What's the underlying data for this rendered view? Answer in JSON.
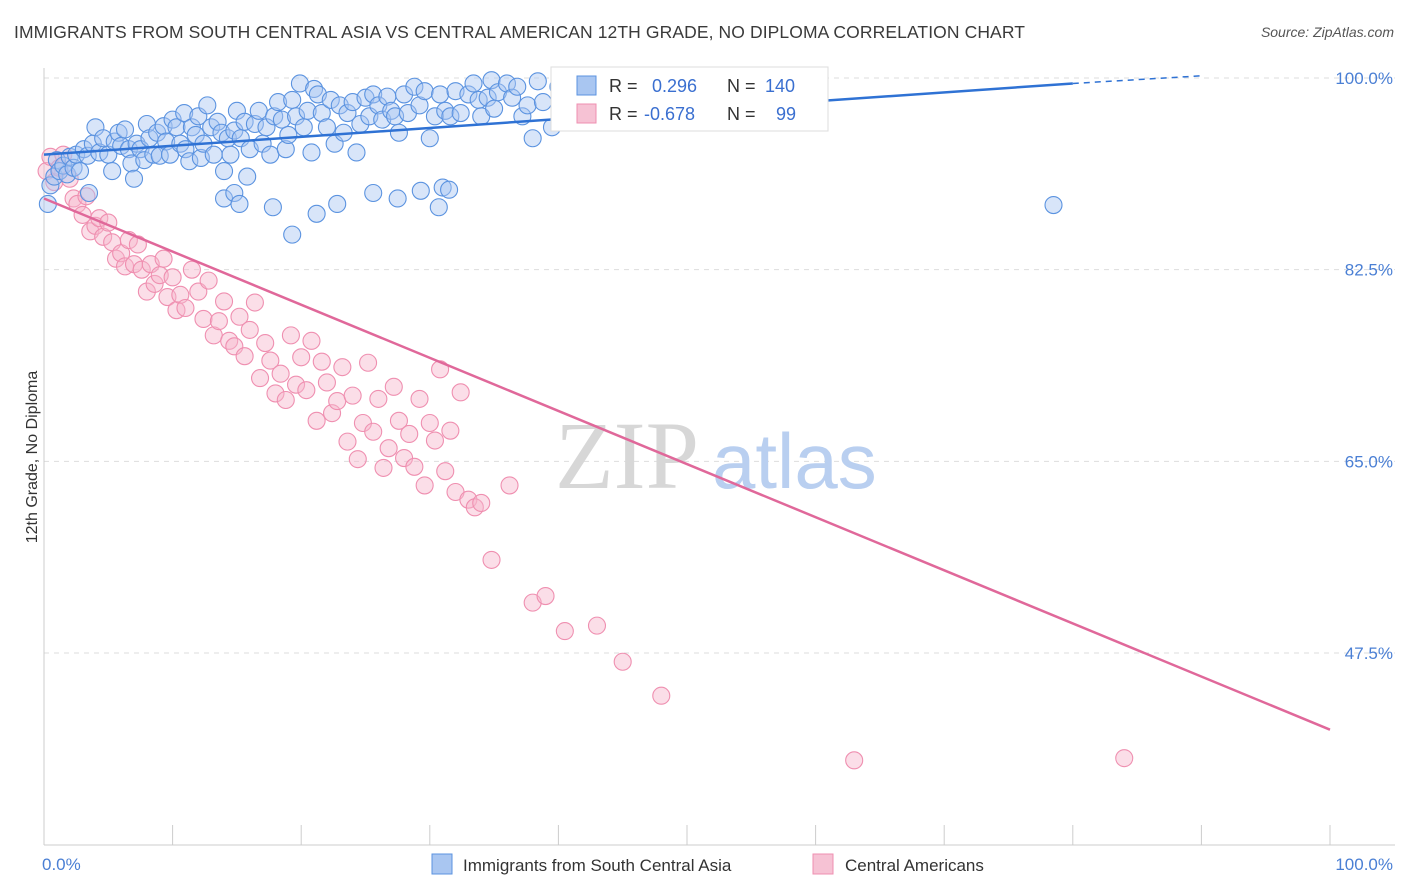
{
  "title": "IMMIGRANTS FROM SOUTH CENTRAL ASIA VS CENTRAL AMERICAN 12TH GRADE, NO DIPLOMA CORRELATION CHART",
  "source": "Source: ZipAtlas.com",
  "colors": {
    "blue": "#5b93e0",
    "blue_line": "#2f72d4",
    "pink": "#ef8fb0",
    "pink_line": "#e0689a",
    "axis_text": "#4a7fd4",
    "grid": "#dddddd"
  },
  "chart_data": {
    "type": "scatter",
    "title": "IMMIGRANTS FROM SOUTH CENTRAL ASIA VS CENTRAL AMERICAN 12TH GRADE, NO DIPLOMA CORRELATION CHART",
    "xlabel": "",
    "ylabel": "12th Grade, No Diploma",
    "xlim": [
      0,
      100
    ],
    "ylim": [
      29,
      100.5
    ],
    "x_tick_labels": [
      "0.0%",
      "100.0%"
    ],
    "y_ticks": [
      47.5,
      65.0,
      82.5,
      100.0
    ],
    "y_tick_labels": [
      "47.5%",
      "65.0%",
      "82.5%",
      "100.0%"
    ],
    "watermark": {
      "zip": "ZIP",
      "atlas": "atlas"
    },
    "stats": {
      "r_label": "R =",
      "n_label": "N =",
      "blue": {
        "r": "0.296",
        "n": "140"
      },
      "pink": {
        "r": "-0.678",
        "n": "99"
      }
    },
    "series": [
      {
        "name": "Immigrants from South Central Asia",
        "color": "#5b93e0",
        "trend": {
          "x": [
            0,
            80
          ],
          "y": [
            93.0,
            99.5
          ],
          "dashed_to": [
            90,
            100.2
          ]
        },
        "points": [
          [
            0.3,
            88.5
          ],
          [
            0.5,
            90.2
          ],
          [
            0.8,
            91
          ],
          [
            1,
            92.5
          ],
          [
            1.2,
            91.5
          ],
          [
            1.5,
            92
          ],
          [
            1.8,
            91.2
          ],
          [
            2,
            92.8
          ],
          [
            2.3,
            91.8
          ],
          [
            2.5,
            93
          ],
          [
            2.8,
            91.5
          ],
          [
            3.1,
            93.5
          ],
          [
            3.4,
            92.9
          ],
          [
            3.5,
            89.5
          ],
          [
            3.8,
            94
          ],
          [
            4,
            95.5
          ],
          [
            4.3,
            93.2
          ],
          [
            4.6,
            94.5
          ],
          [
            5,
            93
          ],
          [
            5.3,
            91.5
          ],
          [
            5.5,
            94.2
          ],
          [
            5.8,
            95
          ],
          [
            6,
            93.8
          ],
          [
            6.3,
            95.3
          ],
          [
            6.6,
            93.5
          ],
          [
            6.8,
            92.2
          ],
          [
            7,
            90.8
          ],
          [
            7.2,
            94
          ],
          [
            7.5,
            93.5
          ],
          [
            7.8,
            92.5
          ],
          [
            8,
            95.8
          ],
          [
            8.2,
            94.5
          ],
          [
            8.5,
            93
          ],
          [
            8.8,
            95
          ],
          [
            9,
            92.9
          ],
          [
            9.3,
            95.6
          ],
          [
            9.5,
            94.2
          ],
          [
            9.8,
            93
          ],
          [
            10,
            96.2
          ],
          [
            10.3,
            95.5
          ],
          [
            10.6,
            94
          ],
          [
            10.9,
            96.8
          ],
          [
            11,
            93.5
          ],
          [
            11.3,
            92.4
          ],
          [
            11.5,
            95.5
          ],
          [
            11.8,
            94.8
          ],
          [
            12,
            96.5
          ],
          [
            12.2,
            92.7
          ],
          [
            12.4,
            94
          ],
          [
            12.7,
            97.5
          ],
          [
            13,
            95.5
          ],
          [
            13.2,
            93
          ],
          [
            13.5,
            96
          ],
          [
            13.8,
            95
          ],
          [
            14,
            91.5
          ],
          [
            14.3,
            94.5
          ],
          [
            14.5,
            93
          ],
          [
            14.8,
            95.2
          ],
          [
            15,
            97
          ],
          [
            15.3,
            94.5
          ],
          [
            15.6,
            96
          ],
          [
            15.8,
            91
          ],
          [
            16,
            93.5
          ],
          [
            16.4,
            95.8
          ],
          [
            16.7,
            97
          ],
          [
            17,
            94
          ],
          [
            17.3,
            95.5
          ],
          [
            17.6,
            93
          ],
          [
            17.9,
            96.5
          ],
          [
            18.2,
            97.8
          ],
          [
            18.5,
            96.2
          ],
          [
            18.8,
            93.5
          ],
          [
            19,
            94.8
          ],
          [
            19.3,
            98
          ],
          [
            19.6,
            96.5
          ],
          [
            19.9,
            99.5
          ],
          [
            20.2,
            95.5
          ],
          [
            20.5,
            97
          ],
          [
            20.8,
            93.2
          ],
          [
            21,
            99
          ],
          [
            21.3,
            98.5
          ],
          [
            21.6,
            96.8
          ],
          [
            22,
            95.5
          ],
          [
            22.3,
            98
          ],
          [
            22.6,
            94
          ],
          [
            23,
            97.5
          ],
          [
            23.3,
            95
          ],
          [
            23.6,
            96.8
          ],
          [
            24,
            97.8
          ],
          [
            24.3,
            93.2
          ],
          [
            24.6,
            95.8
          ],
          [
            25,
            98.2
          ],
          [
            25.3,
            96.5
          ],
          [
            25.6,
            98.5
          ],
          [
            26,
            97.5
          ],
          [
            26.3,
            96.2
          ],
          [
            26.7,
            98.3
          ],
          [
            27,
            97
          ],
          [
            27.3,
            96.5
          ],
          [
            27.6,
            95
          ],
          [
            28,
            98.5
          ],
          [
            28.3,
            96.8
          ],
          [
            28.8,
            99.2
          ],
          [
            29.2,
            97.5
          ],
          [
            29.6,
            98.8
          ],
          [
            30,
            94.5
          ],
          [
            30.4,
            96.5
          ],
          [
            30.8,
            98.5
          ],
          [
            31.2,
            97
          ],
          [
            31.6,
            96.5
          ],
          [
            32,
            98.8
          ],
          [
            32.4,
            96.8
          ],
          [
            33,
            98.5
          ],
          [
            33.4,
            99.5
          ],
          [
            33.8,
            98
          ],
          [
            34,
            96.5
          ],
          [
            34.5,
            98.2
          ],
          [
            34.8,
            99.8
          ],
          [
            35,
            97.2
          ],
          [
            35.3,
            98.7
          ],
          [
            36,
            99.5
          ],
          [
            36.4,
            98.2
          ],
          [
            36.8,
            99.2
          ],
          [
            37.2,
            96.5
          ],
          [
            37.6,
            97.5
          ],
          [
            38,
            94.5
          ],
          [
            38.4,
            99.7
          ],
          [
            38.8,
            97.8
          ],
          [
            39.5,
            95.5
          ],
          [
            40,
            99.2
          ],
          [
            14,
            89
          ],
          [
            14.8,
            89.5
          ],
          [
            15.2,
            88.5
          ],
          [
            17.8,
            88.2
          ],
          [
            19.3,
            85.7
          ],
          [
            21.2,
            87.6
          ],
          [
            22.8,
            88.5
          ],
          [
            25.6,
            89.5
          ],
          [
            27.5,
            89
          ],
          [
            29.3,
            89.7
          ],
          [
            78.5,
            88.4
          ],
          [
            31,
            90
          ],
          [
            31.5,
            89.8
          ],
          [
            30.7,
            88.2
          ]
        ]
      },
      {
        "name": "Central Americans",
        "color": "#ef8fb0",
        "trend": {
          "x": [
            0,
            100
          ],
          "y": [
            89.0,
            40.5
          ]
        },
        "points": [
          [
            0.2,
            91.5
          ],
          [
            0.5,
            92.8
          ],
          [
            0.8,
            90.5
          ],
          [
            1.2,
            91.8
          ],
          [
            1.5,
            93
          ],
          [
            2,
            90.8
          ],
          [
            2.3,
            89
          ],
          [
            2.6,
            88.5
          ],
          [
            3,
            87.5
          ],
          [
            3.3,
            89.2
          ],
          [
            3.6,
            86
          ],
          [
            4,
            86.5
          ],
          [
            4.3,
            87.2
          ],
          [
            4.6,
            85.5
          ],
          [
            5,
            86.8
          ],
          [
            5.3,
            85
          ],
          [
            5.6,
            83.5
          ],
          [
            6,
            84
          ],
          [
            6.3,
            82.8
          ],
          [
            6.6,
            85.2
          ],
          [
            7,
            83
          ],
          [
            7.3,
            84.8
          ],
          [
            7.6,
            82.5
          ],
          [
            8,
            80.5
          ],
          [
            8.3,
            83
          ],
          [
            8.6,
            81.2
          ],
          [
            9,
            82
          ],
          [
            9.3,
            83.5
          ],
          [
            9.6,
            80
          ],
          [
            10,
            81.8
          ],
          [
            10.3,
            78.8
          ],
          [
            10.6,
            80.2
          ],
          [
            11,
            79
          ],
          [
            11.5,
            82.5
          ],
          [
            12,
            80.5
          ],
          [
            12.4,
            78
          ],
          [
            12.8,
            81.5
          ],
          [
            13.2,
            76.5
          ],
          [
            13.6,
            77.8
          ],
          [
            14,
            79.6
          ],
          [
            14.4,
            76
          ],
          [
            14.8,
            75.5
          ],
          [
            15.2,
            78.2
          ],
          [
            15.6,
            74.6
          ],
          [
            16,
            77
          ],
          [
            16.4,
            79.5
          ],
          [
            16.8,
            72.6
          ],
          [
            17.2,
            75.8
          ],
          [
            17.6,
            74.2
          ],
          [
            18,
            71.2
          ],
          [
            18.4,
            73
          ],
          [
            18.8,
            70.6
          ],
          [
            19.2,
            76.5
          ],
          [
            19.6,
            72
          ],
          [
            20,
            74.5
          ],
          [
            20.4,
            71.5
          ],
          [
            20.8,
            76
          ],
          [
            21.2,
            68.7
          ],
          [
            21.6,
            74.1
          ],
          [
            22,
            72.2
          ],
          [
            22.4,
            69.4
          ],
          [
            22.8,
            70.5
          ],
          [
            23.2,
            73.6
          ],
          [
            23.6,
            66.8
          ],
          [
            24,
            71
          ],
          [
            24.4,
            65.2
          ],
          [
            24.8,
            68.5
          ],
          [
            25.2,
            74
          ],
          [
            25.6,
            67.7
          ],
          [
            26,
            70.7
          ],
          [
            26.4,
            64.4
          ],
          [
            26.8,
            66.2
          ],
          [
            27.2,
            71.8
          ],
          [
            27.6,
            68.7
          ],
          [
            28,
            65.3
          ],
          [
            28.4,
            67.5
          ],
          [
            28.8,
            64.5
          ],
          [
            29.2,
            70.7
          ],
          [
            29.6,
            62.8
          ],
          [
            30,
            68.5
          ],
          [
            30.4,
            66.9
          ],
          [
            30.8,
            73.4
          ],
          [
            31.2,
            64.1
          ],
          [
            31.6,
            67.8
          ],
          [
            32,
            62.2
          ],
          [
            32.4,
            71.3
          ],
          [
            33,
            61.5
          ],
          [
            33.5,
            60.8
          ],
          [
            34,
            61.2
          ],
          [
            34.8,
            56
          ],
          [
            36.2,
            62.8
          ],
          [
            38,
            52.1
          ],
          [
            39,
            52.7
          ],
          [
            40.5,
            49.5
          ],
          [
            43,
            50
          ],
          [
            45,
            46.7
          ],
          [
            48,
            43.6
          ],
          [
            63,
            37.7
          ],
          [
            84,
            37.9
          ]
        ]
      }
    ]
  },
  "legend": {
    "items": [
      {
        "label": "Immigrants from South Central Asia"
      },
      {
        "label": "Central Americans"
      }
    ]
  }
}
